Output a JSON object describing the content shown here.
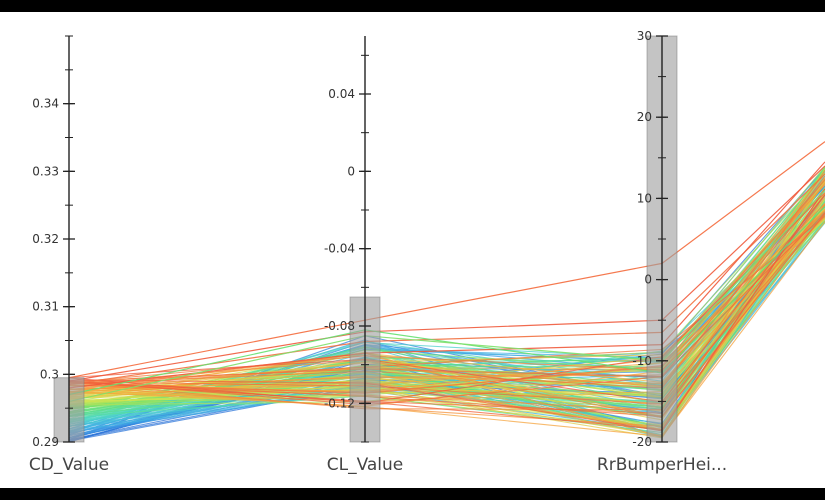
{
  "chart_data": {
    "type": "parallel-coordinates",
    "dimensions": [
      {
        "label": "CD_Value",
        "range": [
          0.29,
          0.35
        ],
        "ticks": [
          {
            "value": 0.29,
            "label": "0.29"
          },
          {
            "value": 0.3,
            "label": "0.3"
          },
          {
            "value": 0.31,
            "label": "0.31"
          },
          {
            "value": 0.32,
            "label": "0.32"
          },
          {
            "value": 0.33,
            "label": "0.33"
          },
          {
            "value": 0.34,
            "label": "0.34"
          }
        ],
        "brush": [
          0.29,
          0.2995
        ]
      },
      {
        "label": "CL_Value",
        "range": [
          -0.14,
          0.07
        ],
        "ticks": [
          {
            "value": 0.04,
            "label": "0.04"
          },
          {
            "value": 0.0,
            "label": "0"
          },
          {
            "value": -0.04,
            "label": "-0.04"
          },
          {
            "value": -0.08,
            "label": "-0.08"
          },
          {
            "value": -0.12,
            "label": "-0.12"
          }
        ],
        "brush": [
          -0.14,
          -0.065
        ]
      },
      {
        "label": "RrBumperHei...",
        "range": [
          -20,
          30
        ],
        "ticks": [
          {
            "value": 30,
            "label": "30"
          },
          {
            "value": 20,
            "label": "20"
          },
          {
            "value": 10,
            "label": "10"
          },
          {
            "value": 0,
            "label": "0"
          },
          {
            "value": -10,
            "label": "-10"
          },
          {
            "value": -20,
            "label": "-20"
          }
        ],
        "brush": [
          -20,
          30
        ]
      }
    ],
    "colorscale": [
      "#2c6bd6",
      "#3fa9e8",
      "#4fd8c4",
      "#66e070",
      "#d6e34f",
      "#f6a23c",
      "#ef5a3c"
    ],
    "line_count": 140,
    "highlight_lines": [
      {
        "values": [
          0.2995,
          -0.077,
          2.0,
          17.0
        ],
        "color": "#f46a3c"
      },
      {
        "values": [
          0.299,
          -0.083,
          -5.0,
          14.0
        ],
        "color": "#ef5a3c"
      },
      {
        "values": [
          0.2985,
          -0.088,
          -6.5,
          13.0
        ],
        "color": "#f2703f"
      },
      {
        "values": [
          0.298,
          -0.094,
          -8.0,
          14.5
        ],
        "color": "#ef5a3c"
      },
      {
        "values": [
          0.297,
          -0.082,
          -11.5,
          9.0
        ],
        "color": "#66e070"
      },
      {
        "values": [
          0.296,
          -0.085,
          -10.0,
          11.0
        ],
        "color": "#7fe06a"
      }
    ]
  }
}
